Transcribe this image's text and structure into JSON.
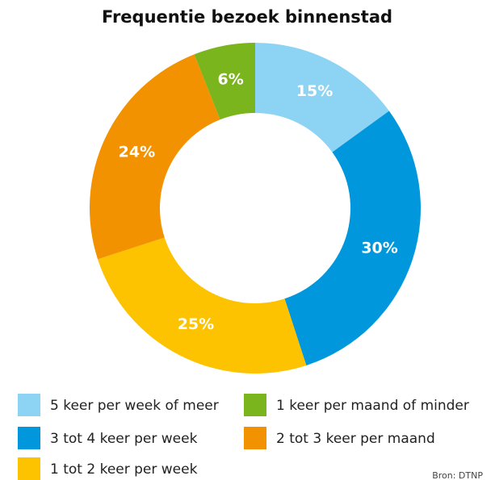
{
  "chart_data": {
    "type": "pie",
    "donut": true,
    "title": "Frequentie bezoek binnenstad",
    "categories": [
      "5 keer per week of meer",
      "3 tot 4 keer per week",
      "1 tot 2 keer per week",
      "2 tot 3 keer per maand",
      "1 keer per maand of minder"
    ],
    "values": [
      15,
      30,
      25,
      24,
      6
    ],
    "value_labels": [
      "15%",
      "30%",
      "25%",
      "24%",
      "6%"
    ],
    "colors": [
      "#8dd3f3",
      "#0097dc",
      "#fdc300",
      "#f39200",
      "#7ab51d"
    ],
    "source": "Bron:  DTNP"
  }
}
